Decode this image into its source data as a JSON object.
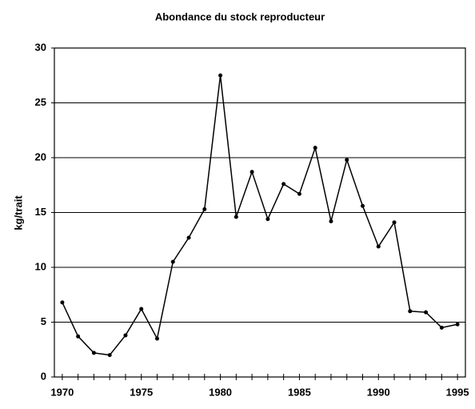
{
  "chart_data": {
    "type": "line",
    "title": "Abondance du stock reproducteur",
    "ylabel": "kg/trait",
    "x": [
      1970,
      1971,
      1972,
      1973,
      1974,
      1975,
      1976,
      1977,
      1978,
      1979,
      1980,
      1981,
      1982,
      1983,
      1984,
      1985,
      1986,
      1987,
      1988,
      1989,
      1990,
      1991,
      1992,
      1993,
      1994,
      1995
    ],
    "series": [
      {
        "name": "Abondance",
        "color": "#000000",
        "values": [
          6.8,
          3.7,
          2.2,
          2.0,
          3.8,
          6.2,
          3.5,
          10.5,
          12.7,
          15.3,
          27.5,
          14.6,
          18.7,
          14.4,
          17.6,
          16.7,
          20.9,
          14.2,
          19.8,
          15.6,
          11.9,
          14.1,
          6.0,
          5.9,
          4.5,
          4.8
        ]
      }
    ],
    "xlim": [
      1969.5,
      1995.5
    ],
    "xticks": [
      1970,
      1975,
      1980,
      1985,
      1990,
      1995
    ],
    "ylim": [
      0,
      30
    ],
    "yticks": [
      0,
      5,
      10,
      15,
      20,
      25,
      30
    ],
    "grid": true
  }
}
